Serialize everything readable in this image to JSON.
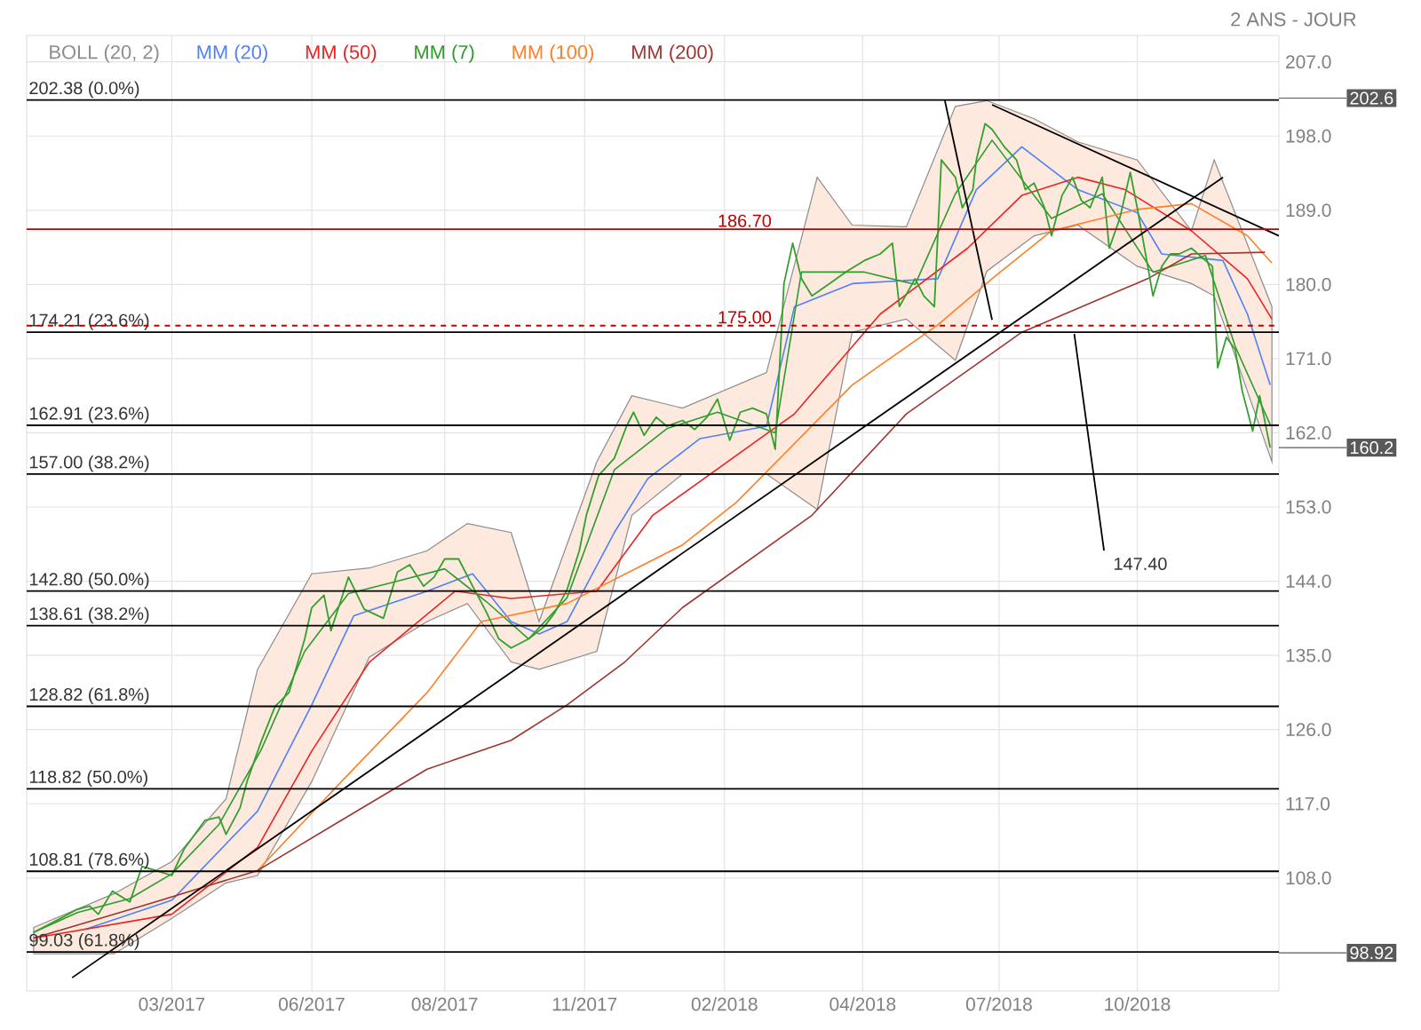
{
  "chart_data": {
    "type": "line",
    "xlim": [
      "2017-01-04",
      "2018-12-21"
    ],
    "ylim": [
      94.3,
      210.2
    ],
    "xticks": [
      {
        "value": "2017-03-28",
        "label": "03/2017"
      },
      {
        "value": "2017-06-16",
        "label": "06/2017"
      },
      {
        "value": "2017-08-31",
        "label": "08/2017"
      },
      {
        "value": "2017-11-19",
        "label": "11/2017"
      },
      {
        "value": "2018-02-07",
        "label": "02/2018"
      },
      {
        "value": "2018-04-27",
        "label": "04/2018"
      },
      {
        "value": "2018-07-14",
        "label": "07/2018"
      },
      {
        "value": "2018-10-01",
        "label": "10/2018"
      }
    ],
    "yticks": [
      {
        "value": 108,
        "label": "108.0"
      },
      {
        "value": 117,
        "label": "117.0"
      },
      {
        "value": 126,
        "label": "126.0"
      },
      {
        "value": 135,
        "label": "135.0"
      },
      {
        "value": 144,
        "label": "144.0"
      },
      {
        "value": 153,
        "label": "153.0"
      },
      {
        "value": 162,
        "label": "162.0"
      },
      {
        "value": 171,
        "label": "171.0"
      },
      {
        "value": 180,
        "label": "180.0"
      },
      {
        "value": 189,
        "label": "189.0"
      },
      {
        "value": 198,
        "label": "198.0"
      },
      {
        "value": 207,
        "label": "207.0"
      }
    ],
    "grid": true,
    "legend": "top left",
    "series": [
      {
        "name": "BOLL (20, 2)",
        "color": "#8c8c8c",
        "x": [
          "2017-01-08",
          "2017-02-23",
          "2017-03-28",
          "2017-04-28",
          "2017-05-16",
          "2017-06-16",
          "2017-07-19",
          "2017-08-21",
          "2017-09-13",
          "2017-10-08",
          "2017-10-24",
          "2017-11-26",
          "2017-12-16",
          "2018-01-14",
          "2018-03-03",
          "2018-04-01",
          "2018-04-21",
          "2018-05-22",
          "2018-06-19",
          "2018-07-07",
          "2018-08-03",
          "2018-08-28",
          "2018-10-01",
          "2018-11-01",
          "2018-11-14",
          "2018-12-17"
        ],
        "values": [
          null,
          null,
          null,
          null,
          null,
          null,
          null,
          null,
          null,
          null,
          null,
          null,
          null,
          null,
          null,
          null,
          null,
          null,
          null,
          null,
          null,
          null,
          null,
          null,
          null,
          null
        ],
        "upper": [
          102.0,
          106.1,
          110.0,
          117.6,
          133.3,
          144.9,
          145.6,
          147.7,
          151.0,
          149.9,
          139.1,
          158.5,
          166.5,
          165.0,
          169.3,
          193.0,
          187.2,
          187.0,
          201.6,
          202.3,
          200.1,
          197.3,
          195.1,
          186.5,
          195.1,
          177.3
        ],
        "lower": [
          98.8,
          98.8,
          103.1,
          107.4,
          108.3,
          119.7,
          134.8,
          139.1,
          141.3,
          134.2,
          133.3,
          135.5,
          152.0,
          157.0,
          157.0,
          152.7,
          174.2,
          175.8,
          170.8,
          181.6,
          185.9,
          187.2,
          182.2,
          180.1,
          178.6,
          158.5
        ]
      },
      {
        "name": "MM (20)",
        "color": "#4f81f7",
        "x": [
          "2017-02-07",
          "2017-03-28",
          "2017-05-16",
          "2017-06-16",
          "2017-07-10",
          "2017-08-21",
          "2017-09-16",
          "2017-10-08",
          "2017-10-24",
          "2017-11-09",
          "2017-12-06",
          "2017-12-25",
          "2018-01-24",
          "2018-03-03",
          "2018-03-19",
          "2018-04-21",
          "2018-06-09",
          "2018-07-01",
          "2018-07-27",
          "2018-08-28",
          "2018-10-01",
          "2018-10-15",
          "2018-11-19",
          "2018-12-03",
          "2018-12-16"
        ],
        "values": [
          101.8,
          105.3,
          116.1,
          129.0,
          139.8,
          142.8,
          144.9,
          139.1,
          137.6,
          139.1,
          149.9,
          156.4,
          161.3,
          162.8,
          177.3,
          180.1,
          180.7,
          191.5,
          196.7,
          191.5,
          188.7,
          183.7,
          182.9,
          176.4,
          167.8
        ]
      },
      {
        "name": "MM (50)",
        "color": "#ee2222",
        "x": [
          "2017-01-08",
          "2017-03-28",
          "2017-05-16",
          "2017-06-16",
          "2017-07-19",
          "2017-09-06",
          "2017-10-08",
          "2017-11-26",
          "2017-12-28",
          "2018-03-19",
          "2018-05-07",
          "2018-06-26",
          "2018-07-27",
          "2018-08-28",
          "2018-09-24",
          "2018-11-01",
          "2018-12-03",
          "2018-12-17"
        ],
        "values": [
          100.7,
          103.6,
          111.7,
          123.4,
          134.2,
          142.8,
          141.9,
          142.8,
          152.0,
          164.3,
          176.4,
          184.4,
          190.8,
          193.0,
          191.5,
          186.5,
          180.7,
          175.8
        ]
      },
      {
        "name": "MM (7)",
        "color": "#2e9b2e",
        "x": [
          "2017-01-08",
          "2017-02-02",
          "2017-03-04",
          "2017-03-28",
          "2017-04-24",
          "2017-05-18",
          "2017-06-12",
          "2017-07-07",
          "2017-08-04",
          "2017-08-31",
          "2017-09-24",
          "2017-10-18",
          "2017-11-09",
          "2017-12-06",
          "2018-01-05",
          "2018-02-03",
          "2018-03-08",
          "2018-03-23",
          "2018-04-28",
          "2018-05-27",
          "2018-06-19",
          "2018-07-10",
          "2018-08-13",
          "2018-09-11",
          "2018-10-10",
          "2018-11-09",
          "2018-11-26",
          "2018-12-16"
        ],
        "values": [
          101.4,
          103.8,
          105.5,
          108.5,
          114.5,
          123.5,
          135.5,
          142.5,
          144.0,
          145.5,
          141.5,
          137.0,
          142.0,
          157.5,
          162.5,
          164.5,
          162.0,
          181.5,
          181.5,
          180.0,
          191.0,
          197.5,
          188.0,
          191.0,
          181.5,
          183.5,
          172.5,
          163.0
        ]
      },
      {
        "name": "MM (100)",
        "color": "#ff7f27",
        "x": [
          "2017-05-16",
          "2017-07-03",
          "2017-08-21",
          "2017-09-21",
          "2017-11-09",
          "2018-01-14",
          "2018-02-14",
          "2018-04-21",
          "2018-06-09",
          "2018-07-10",
          "2018-08-13",
          "2018-10-01",
          "2018-11-01",
          "2018-12-03",
          "2018-12-17"
        ],
        "values": [
          108.9,
          119.7,
          130.5,
          139.1,
          141.3,
          148.4,
          153.6,
          167.8,
          175.1,
          180.7,
          186.5,
          189.1,
          189.8,
          185.9,
          182.6
        ]
      },
      {
        "name": "MM (200)",
        "color": "#a0342f",
        "x": [
          "2017-01-08",
          "2017-03-11",
          "2017-05-16",
          "2017-07-03",
          "2017-08-21",
          "2017-10-08",
          "2017-11-09",
          "2017-12-12",
          "2018-01-14",
          "2018-03-29",
          "2018-05-22",
          "2018-07-27",
          "2018-10-07",
          "2018-11-01",
          "2018-12-13"
        ],
        "values": [
          100.7,
          104.6,
          108.9,
          115.0,
          121.2,
          124.7,
          129.0,
          134.2,
          140.8,
          152.0,
          164.3,
          174.2,
          180.7,
          183.7,
          183.9
        ]
      },
      {
        "color": "#33a02c",
        "x": [
          "2017-01-08",
          "2017-01-18",
          "2017-02-02",
          "2017-02-09",
          "2017-02-14",
          "2017-02-22",
          "2017-03-04",
          "2017-03-11",
          "2017-03-19",
          "2017-03-28",
          "2017-04-04",
          "2017-04-16",
          "2017-04-24",
          "2017-04-28",
          "2017-05-06",
          "2017-05-10",
          "2017-05-18",
          "2017-05-26",
          "2017-06-03",
          "2017-06-12",
          "2017-06-16",
          "2017-06-23",
          "2017-06-27",
          "2017-07-07",
          "2017-07-16",
          "2017-07-27",
          "2017-08-04",
          "2017-08-11",
          "2017-08-19",
          "2017-08-25",
          "2017-08-31",
          "2017-09-08",
          "2017-09-16",
          "2017-09-24",
          "2017-10-01",
          "2017-10-08",
          "2017-10-18",
          "2017-10-27",
          "2017-11-02",
          "2017-11-09",
          "2017-11-16",
          "2017-11-20",
          "2017-11-27",
          "2017-12-06",
          "2017-12-13",
          "2017-12-17",
          "2017-12-23",
          "2017-12-30",
          "2018-01-05",
          "2018-01-14",
          "2018-01-21",
          "2018-01-28",
          "2018-02-03",
          "2018-02-10",
          "2018-02-16",
          "2018-02-23",
          "2018-03-03",
          "2018-03-08",
          "2018-03-13",
          "2018-03-18",
          "2018-03-23",
          "2018-03-29",
          "2018-04-08",
          "2018-04-18",
          "2018-04-28",
          "2018-05-07",
          "2018-05-14",
          "2018-05-18",
          "2018-05-27",
          "2018-06-01",
          "2018-06-07",
          "2018-06-11",
          "2018-06-19",
          "2018-06-23",
          "2018-06-29",
          "2018-07-01",
          "2018-07-06",
          "2018-07-10",
          "2018-07-17",
          "2018-07-24",
          "2018-07-29",
          "2018-08-03",
          "2018-08-09",
          "2018-08-13",
          "2018-08-19",
          "2018-08-25",
          "2018-08-30",
          "2018-09-04",
          "2018-09-11",
          "2018-09-15",
          "2018-09-21",
          "2018-09-27",
          "2018-10-01",
          "2018-10-07",
          "2018-10-10",
          "2018-10-15",
          "2018-10-20",
          "2018-10-25",
          "2018-11-01",
          "2018-11-09",
          "2018-11-13",
          "2018-11-16",
          "2018-11-21",
          "2018-11-26",
          "2018-11-30",
          "2018-12-06",
          "2018-12-10",
          "2018-12-16"
        ],
        "values": [
          101.4,
          102.5,
          104.2,
          104.6,
          103.6,
          106.4,
          105.1,
          109.4,
          108.9,
          108.3,
          111.5,
          115.0,
          115.4,
          113.3,
          116.5,
          119.7,
          124.5,
          128.8,
          130.5,
          137.0,
          140.8,
          142.3,
          138.0,
          144.5,
          140.6,
          139.5,
          145.1,
          146.0,
          143.4,
          144.5,
          146.7,
          146.7,
          143.4,
          140.2,
          137.0,
          135.9,
          137.0,
          138.5,
          140.2,
          143.0,
          147.7,
          152.0,
          156.8,
          158.9,
          162.8,
          164.5,
          161.7,
          163.9,
          162.8,
          163.5,
          162.4,
          163.9,
          166.1,
          161.1,
          164.5,
          165.0,
          164.3,
          160.0,
          180.1,
          185.0,
          180.7,
          178.6,
          180.1,
          181.6,
          182.9,
          183.7,
          185.0,
          177.3,
          180.7,
          178.6,
          177.3,
          195.1,
          193.0,
          189.3,
          191.5,
          195.1,
          199.5,
          198.8,
          196.7,
          195.1,
          191.5,
          192.3,
          189.3,
          185.9,
          190.8,
          193.0,
          190.2,
          189.3,
          193.0,
          184.4,
          188.0,
          193.6,
          189.3,
          182.2,
          178.6,
          182.2,
          183.7,
          183.7,
          184.4,
          182.9,
          182.2,
          169.9,
          173.6,
          172.1,
          167.1,
          162.2,
          166.5,
          160.2
        ]
      },
      {
        "color": "#000000",
        "x": [
          "2017-01-30",
          "2018-11-19"
        ],
        "values": [
          95.9,
          193.0
        ]
      },
      {
        "color": "#000000",
        "x": [
          "2018-07-10",
          "2018-12-21"
        ],
        "values": [
          201.8,
          185.9
        ]
      },
      {
        "color": "#000000",
        "x": [
          "2018-06-13",
          "2018-07-10"
        ],
        "values": [
          202.3,
          175.7
        ]
      },
      {
        "color": "#000000",
        "x": [
          "2018-08-26",
          "2018-09-12"
        ],
        "values": [
          174.0,
          147.7
        ]
      }
    ],
    "ref_lines": [
      {
        "axis": "y",
        "value": 202.38,
        "label": "202.38  (0.0%)"
      },
      {
        "axis": "y",
        "value": 174.21,
        "label": "174.21  (23.6%)"
      },
      {
        "axis": "y",
        "value": 162.91,
        "label": "162.91  (23.6%)"
      },
      {
        "axis": "y",
        "value": 157.0,
        "label": "157.00  (38.2%)"
      },
      {
        "axis": "y",
        "value": 142.8,
        "label": "142.80  (50.0%)"
      },
      {
        "axis": "y",
        "value": 138.61,
        "label": "138.61  (38.2%)"
      },
      {
        "axis": "y",
        "value": 128.82,
        "label": "128.82  (61.8%)"
      },
      {
        "axis": "y",
        "value": 118.82,
        "label": "118.82  (50.0%)"
      },
      {
        "axis": "y",
        "value": 108.81,
        "label": "108.81  (78.6%)"
      },
      {
        "axis": "y",
        "value": 99.03,
        "label": "99.03  (61.8%)"
      },
      {
        "axis": "y",
        "value": 175.0,
        "label": "175.00",
        "color": "#c00000",
        "line_style": "dashed"
      },
      {
        "axis": "y",
        "value": 186.7,
        "label": "186.70",
        "color": "#c00000"
      }
    ],
    "annotations": [
      "2 ANS - JOUR",
      {
        "text": "147.40",
        "x": "2018-09-12",
        "y": 147.4
      },
      {
        "text": "202.6",
        "x": "2018-12-21",
        "y": 202.6
      },
      {
        "text": "160.2",
        "x": "2018-12-21",
        "y": 160.2
      },
      {
        "text": "98.92",
        "x": "2018-12-21",
        "y": 98.92
      }
    ]
  }
}
